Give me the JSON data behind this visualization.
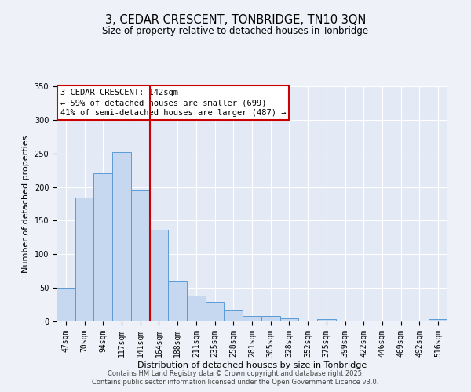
{
  "title": "3, CEDAR CRESCENT, TONBRIDGE, TN10 3QN",
  "subtitle": "Size of property relative to detached houses in Tonbridge",
  "xlabel": "Distribution of detached houses by size in Tonbridge",
  "ylabel": "Number of detached properties",
  "bar_labels": [
    "47sqm",
    "70sqm",
    "94sqm",
    "117sqm",
    "141sqm",
    "164sqm",
    "188sqm",
    "211sqm",
    "235sqm",
    "258sqm",
    "281sqm",
    "305sqm",
    "328sqm",
    "352sqm",
    "375sqm",
    "399sqm",
    "422sqm",
    "446sqm",
    "469sqm",
    "492sqm",
    "516sqm"
  ],
  "bar_values": [
    50,
    184,
    220,
    252,
    196,
    136,
    59,
    39,
    29,
    16,
    8,
    8,
    5,
    1,
    3,
    1,
    0,
    0,
    0,
    1,
    4
  ],
  "bar_color": "#c5d8f0",
  "bar_edge_color": "#5b9bd5",
  "ylim": [
    0,
    350
  ],
  "yticks": [
    0,
    50,
    100,
    150,
    200,
    250,
    300,
    350
  ],
  "property_bin_index": 4,
  "annotation_title": "3 CEDAR CRESCENT: 142sqm",
  "annotation_line1": "← 59% of detached houses are smaller (699)",
  "annotation_line2": "41% of semi-detached houses are larger (487) →",
  "annotation_box_color": "#ffffff",
  "annotation_box_edge_color": "#cc0000",
  "footer_line1": "Contains HM Land Registry data © Crown copyright and database right 2025.",
  "footer_line2": "Contains public sector information licensed under the Open Government Licence v3.0.",
  "background_color": "#eef1f8",
  "plot_background_color": "#e4eaf5",
  "grid_color": "#ffffff",
  "vline_color": "#cc0000",
  "title_fontsize": 10.5,
  "subtitle_fontsize": 8.5,
  "axis_label_fontsize": 8,
  "tick_fontsize": 7,
  "annotation_fontsize": 7.5,
  "footer_fontsize": 6
}
